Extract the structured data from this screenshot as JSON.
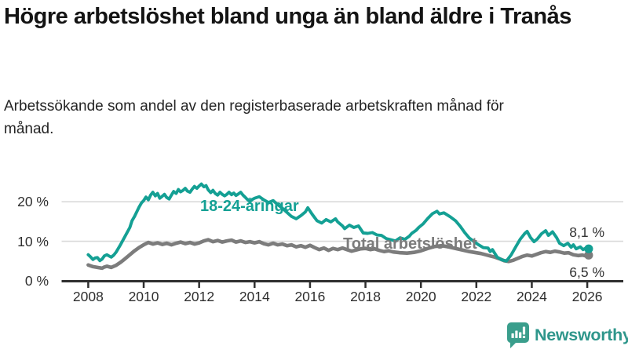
{
  "header": {
    "title": "Högre arbetslöshet bland unga än bland äldre i Tranås",
    "subtitle": "Arbetssökande som andel av den registerbaserade arbetskraften månad för månad."
  },
  "chart_data": {
    "type": "line",
    "title": "Högre arbetslöshet bland unga än bland äldre i Tranås",
    "subtitle": "Arbetssökande som andel av den registerbaserade arbetskraften månad för månad.",
    "unit": "%",
    "xlim": [
      2007.04,
      2027.3
    ],
    "ylim": [
      0,
      25.8
    ],
    "grid": "horizontal",
    "legend_position": "inline-labels",
    "x_ticks": [
      {
        "value": 2008,
        "label": "2008"
      },
      {
        "value": 2010,
        "label": "2010"
      },
      {
        "value": 2012,
        "label": "2012"
      },
      {
        "value": 2014,
        "label": "2014"
      },
      {
        "value": 2016,
        "label": "2016"
      },
      {
        "value": 2018,
        "label": "2018"
      },
      {
        "value": 2020,
        "label": "2020"
      },
      {
        "value": 2022,
        "label": "2022"
      },
      {
        "value": 2024,
        "label": "2024"
      },
      {
        "value": 2026,
        "label": "2026"
      }
    ],
    "y_ticks": [
      {
        "value": 0,
        "label": "0 %"
      },
      {
        "value": 10,
        "label": "10 %"
      },
      {
        "value": 20,
        "label": "20 %"
      }
    ],
    "colors": {
      "axis": "#2f2f2f",
      "grid": "#d9d9d9",
      "end_label_text": "#333333"
    },
    "series": [
      {
        "name": "18-24-åringar",
        "color": "#14a094",
        "end_label": "8,1 %",
        "last_value": 8.1,
        "points": [
          [
            2008.0,
            6.6
          ],
          [
            2008.08,
            6.1
          ],
          [
            2008.17,
            5.4
          ],
          [
            2008.25,
            5.8
          ],
          [
            2008.33,
            5.9
          ],
          [
            2008.42,
            5.1
          ],
          [
            2008.5,
            5.5
          ],
          [
            2008.58,
            6.3
          ],
          [
            2008.67,
            6.6
          ],
          [
            2008.75,
            6.3
          ],
          [
            2008.83,
            6.0
          ],
          [
            2008.92,
            6.5
          ],
          [
            2009.0,
            7.2
          ],
          [
            2009.17,
            9.2
          ],
          [
            2009.33,
            11.3
          ],
          [
            2009.5,
            13.5
          ],
          [
            2009.58,
            15.2
          ],
          [
            2009.67,
            16.3
          ],
          [
            2009.83,
            18.6
          ],
          [
            2009.92,
            19.7
          ],
          [
            2010.0,
            20.3
          ],
          [
            2010.08,
            21.2
          ],
          [
            2010.17,
            20.5
          ],
          [
            2010.25,
            21.7
          ],
          [
            2010.33,
            22.4
          ],
          [
            2010.42,
            21.5
          ],
          [
            2010.5,
            22.1
          ],
          [
            2010.58,
            20.9
          ],
          [
            2010.67,
            21.4
          ],
          [
            2010.75,
            21.9
          ],
          [
            2010.83,
            21.1
          ],
          [
            2010.92,
            20.7
          ],
          [
            2011.0,
            21.7
          ],
          [
            2011.08,
            22.6
          ],
          [
            2011.17,
            22.1
          ],
          [
            2011.25,
            23.1
          ],
          [
            2011.33,
            22.5
          ],
          [
            2011.42,
            22.9
          ],
          [
            2011.5,
            23.4
          ],
          [
            2011.58,
            22.7
          ],
          [
            2011.67,
            22.4
          ],
          [
            2011.75,
            23.2
          ],
          [
            2011.83,
            23.9
          ],
          [
            2011.92,
            23.4
          ],
          [
            2012.0,
            24.0
          ],
          [
            2012.08,
            24.5
          ],
          [
            2012.17,
            23.8
          ],
          [
            2012.25,
            24.1
          ],
          [
            2012.33,
            23.0
          ],
          [
            2012.42,
            22.3
          ],
          [
            2012.5,
            22.9
          ],
          [
            2012.58,
            22.1
          ],
          [
            2012.67,
            21.7
          ],
          [
            2012.75,
            22.4
          ],
          [
            2012.83,
            21.9
          ],
          [
            2012.92,
            21.5
          ],
          [
            2013.0,
            21.9
          ],
          [
            2013.08,
            22.4
          ],
          [
            2013.17,
            21.8
          ],
          [
            2013.25,
            22.2
          ],
          [
            2013.33,
            21.6
          ],
          [
            2013.42,
            22.0
          ],
          [
            2013.5,
            22.4
          ],
          [
            2013.58,
            21.7
          ],
          [
            2013.67,
            21.1
          ],
          [
            2013.75,
            20.5
          ],
          [
            2013.83,
            20.1
          ],
          [
            2013.92,
            20.6
          ],
          [
            2014.0,
            20.9
          ],
          [
            2014.17,
            21.3
          ],
          [
            2014.33,
            20.5
          ],
          [
            2014.5,
            19.8
          ],
          [
            2014.67,
            20.3
          ],
          [
            2014.83,
            19.3
          ],
          [
            2015.0,
            18.4
          ],
          [
            2015.17,
            17.3
          ],
          [
            2015.33,
            16.3
          ],
          [
            2015.5,
            15.7
          ],
          [
            2015.67,
            16.5
          ],
          [
            2015.83,
            17.4
          ],
          [
            2015.92,
            18.5
          ],
          [
            2016.08,
            16.8
          ],
          [
            2016.25,
            15.2
          ],
          [
            2016.42,
            14.6
          ],
          [
            2016.58,
            15.5
          ],
          [
            2016.75,
            14.9
          ],
          [
            2016.92,
            15.7
          ],
          [
            2017.0,
            14.9
          ],
          [
            2017.17,
            13.9
          ],
          [
            2017.25,
            13.2
          ],
          [
            2017.42,
            14.1
          ],
          [
            2017.58,
            13.5
          ],
          [
            2017.75,
            13.9
          ],
          [
            2017.92,
            12.1
          ],
          [
            2018.08,
            12.0
          ],
          [
            2018.25,
            12.2
          ],
          [
            2018.42,
            11.6
          ],
          [
            2018.58,
            11.5
          ],
          [
            2018.75,
            10.7
          ],
          [
            2018.92,
            10.4
          ],
          [
            2019.08,
            10.1
          ],
          [
            2019.25,
            10.9
          ],
          [
            2019.42,
            10.5
          ],
          [
            2019.58,
            11.3
          ],
          [
            2019.67,
            12.0
          ],
          [
            2019.83,
            12.8
          ],
          [
            2019.92,
            13.5
          ],
          [
            2020.08,
            14.4
          ],
          [
            2020.25,
            15.8
          ],
          [
            2020.42,
            17.0
          ],
          [
            2020.58,
            17.6
          ],
          [
            2020.67,
            16.9
          ],
          [
            2020.83,
            17.2
          ],
          [
            2020.92,
            16.8
          ],
          [
            2021.08,
            16.1
          ],
          [
            2021.25,
            15.2
          ],
          [
            2021.42,
            13.8
          ],
          [
            2021.58,
            12.2
          ],
          [
            2021.75,
            10.8
          ],
          [
            2021.92,
            9.9
          ],
          [
            2022.08,
            9.1
          ],
          [
            2022.25,
            8.4
          ],
          [
            2022.42,
            8.3
          ],
          [
            2022.5,
            7.4
          ],
          [
            2022.58,
            7.9
          ],
          [
            2022.75,
            6.0
          ],
          [
            2022.92,
            5.3
          ],
          [
            2023.08,
            5.0
          ],
          [
            2023.25,
            6.5
          ],
          [
            2023.42,
            8.6
          ],
          [
            2023.58,
            10.5
          ],
          [
            2023.75,
            12.0
          ],
          [
            2023.83,
            12.5
          ],
          [
            2023.95,
            11.0
          ],
          [
            2024.08,
            9.9
          ],
          [
            2024.2,
            10.6
          ],
          [
            2024.35,
            11.9
          ],
          [
            2024.5,
            12.7
          ],
          [
            2024.6,
            11.5
          ],
          [
            2024.75,
            12.4
          ],
          [
            2024.9,
            10.9
          ],
          [
            2025.0,
            9.5
          ],
          [
            2025.15,
            8.9
          ],
          [
            2025.3,
            9.5
          ],
          [
            2025.42,
            8.5
          ],
          [
            2025.5,
            9.1
          ],
          [
            2025.6,
            8.1
          ],
          [
            2025.75,
            8.6
          ],
          [
            2025.85,
            7.9
          ],
          [
            2025.95,
            8.3
          ],
          [
            2026.05,
            8.1
          ]
        ]
      },
      {
        "name": "Total arbetslöshet",
        "color": "#7c7c7c",
        "end_label": "6,5 %",
        "last_value": 6.5,
        "points": [
          [
            2008.0,
            4.0
          ],
          [
            2008.17,
            3.6
          ],
          [
            2008.33,
            3.4
          ],
          [
            2008.5,
            3.2
          ],
          [
            2008.58,
            3.5
          ],
          [
            2008.67,
            3.7
          ],
          [
            2008.83,
            3.4
          ],
          [
            2009.0,
            3.9
          ],
          [
            2009.17,
            4.7
          ],
          [
            2009.33,
            5.6
          ],
          [
            2009.5,
            6.6
          ],
          [
            2009.67,
            7.6
          ],
          [
            2009.83,
            8.4
          ],
          [
            2010.0,
            9.1
          ],
          [
            2010.17,
            9.7
          ],
          [
            2010.33,
            9.3
          ],
          [
            2010.5,
            9.6
          ],
          [
            2010.67,
            9.2
          ],
          [
            2010.83,
            9.5
          ],
          [
            2011.0,
            9.1
          ],
          [
            2011.17,
            9.5
          ],
          [
            2011.33,
            9.8
          ],
          [
            2011.5,
            9.4
          ],
          [
            2011.67,
            9.7
          ],
          [
            2011.83,
            9.3
          ],
          [
            2012.0,
            9.6
          ],
          [
            2012.17,
            10.1
          ],
          [
            2012.33,
            10.4
          ],
          [
            2012.5,
            9.9
          ],
          [
            2012.67,
            10.2
          ],
          [
            2012.83,
            9.8
          ],
          [
            2013.0,
            10.1
          ],
          [
            2013.17,
            10.3
          ],
          [
            2013.33,
            9.8
          ],
          [
            2013.5,
            10.1
          ],
          [
            2013.67,
            9.7
          ],
          [
            2013.83,
            9.9
          ],
          [
            2014.0,
            9.6
          ],
          [
            2014.17,
            9.9
          ],
          [
            2014.33,
            9.4
          ],
          [
            2014.5,
            9.1
          ],
          [
            2014.67,
            9.5
          ],
          [
            2014.83,
            9.1
          ],
          [
            2015.0,
            9.3
          ],
          [
            2015.17,
            8.9
          ],
          [
            2015.33,
            9.1
          ],
          [
            2015.5,
            8.6
          ],
          [
            2015.67,
            8.9
          ],
          [
            2015.83,
            8.5
          ],
          [
            2016.0,
            9.0
          ],
          [
            2016.17,
            8.4
          ],
          [
            2016.33,
            7.9
          ],
          [
            2016.5,
            8.3
          ],
          [
            2016.67,
            7.7
          ],
          [
            2016.83,
            8.2
          ],
          [
            2017.0,
            7.9
          ],
          [
            2017.17,
            8.3
          ],
          [
            2017.33,
            7.9
          ],
          [
            2017.5,
            7.5
          ],
          [
            2017.67,
            7.8
          ],
          [
            2017.83,
            8.1
          ],
          [
            2018.0,
            8.2
          ],
          [
            2018.17,
            7.9
          ],
          [
            2018.33,
            8.1
          ],
          [
            2018.5,
            7.7
          ],
          [
            2018.67,
            7.4
          ],
          [
            2018.83,
            7.6
          ],
          [
            2019.0,
            7.3
          ],
          [
            2019.25,
            7.1
          ],
          [
            2019.5,
            7.0
          ],
          [
            2019.75,
            7.2
          ],
          [
            2020.0,
            7.6
          ],
          [
            2020.25,
            8.2
          ],
          [
            2020.5,
            8.7
          ],
          [
            2020.75,
            8.9
          ],
          [
            2021.0,
            8.6
          ],
          [
            2021.25,
            8.2
          ],
          [
            2021.5,
            7.8
          ],
          [
            2021.75,
            7.4
          ],
          [
            2022.0,
            7.1
          ],
          [
            2022.17,
            6.9
          ],
          [
            2022.33,
            6.6
          ],
          [
            2022.5,
            6.3
          ],
          [
            2022.67,
            6.0
          ],
          [
            2022.83,
            5.6
          ],
          [
            2023.0,
            5.1
          ],
          [
            2023.17,
            4.9
          ],
          [
            2023.33,
            5.2
          ],
          [
            2023.5,
            5.7
          ],
          [
            2023.67,
            6.2
          ],
          [
            2023.83,
            6.5
          ],
          [
            2024.0,
            6.3
          ],
          [
            2024.17,
            6.7
          ],
          [
            2024.33,
            7.1
          ],
          [
            2024.5,
            7.4
          ],
          [
            2024.67,
            7.2
          ],
          [
            2024.83,
            7.5
          ],
          [
            2025.0,
            7.3
          ],
          [
            2025.17,
            7.0
          ],
          [
            2025.33,
            7.1
          ],
          [
            2025.5,
            6.6
          ],
          [
            2025.67,
            6.4
          ],
          [
            2025.83,
            6.5
          ],
          [
            2025.95,
            6.3
          ],
          [
            2026.05,
            6.5
          ]
        ]
      }
    ]
  },
  "footer": {
    "brand": "Newsworthy",
    "brand_color": "#2e968b",
    "logo_icon_color": "#3a9e8c"
  }
}
